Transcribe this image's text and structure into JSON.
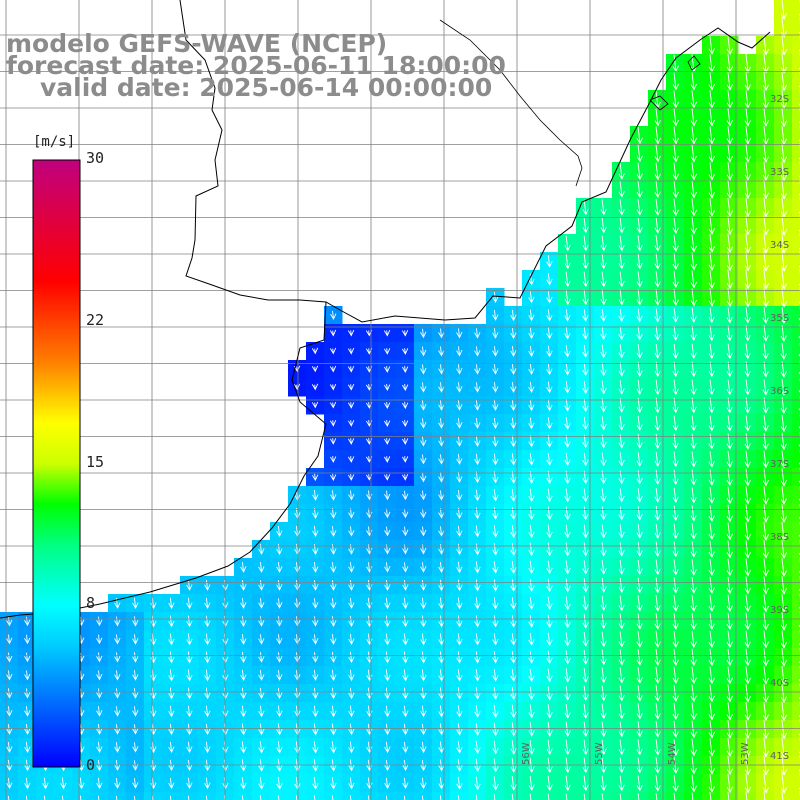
{
  "title": {
    "line1": "modelo GEFS-WAVE (NCEP)",
    "line2": "forecast date: 2025-06-11 18:00:00",
    "line3": "valid date: 2025-06-14 00:00:00"
  },
  "colorbar": {
    "units": "[m/s]",
    "ticks": [
      {
        "value": 30,
        "label": "30"
      },
      {
        "value": 22,
        "label": "22"
      },
      {
        "value": 15,
        "label": "15"
      },
      {
        "value": 8,
        "label": "8"
      },
      {
        "value": 0,
        "label": "0"
      }
    ],
    "range": [
      0,
      30
    ],
    "stops": [
      {
        "value": 0,
        "color": "#0000ff"
      },
      {
        "value": 3,
        "color": "#0066ff"
      },
      {
        "value": 6,
        "color": "#00ccff"
      },
      {
        "value": 8,
        "color": "#00ffff"
      },
      {
        "value": 11,
        "color": "#00ff80"
      },
      {
        "value": 13,
        "color": "#00ff00"
      },
      {
        "value": 15,
        "color": "#ccff00"
      },
      {
        "value": 17,
        "color": "#ffff00"
      },
      {
        "value": 20,
        "color": "#ff8000"
      },
      {
        "value": 24,
        "color": "#ff0000"
      },
      {
        "value": 30,
        "color": "#c0007f"
      }
    ]
  },
  "lat_labels": [
    "32S",
    "33S",
    "34S",
    "35S",
    "36S",
    "37S",
    "38S",
    "39S",
    "40S",
    "41S"
  ],
  "lon_labels": [
    "56W",
    "55W",
    "54W",
    "53W"
  ],
  "field": {
    "variable": "wind speed",
    "direction": "north-northeast to south-southwest",
    "coast_color": "#000000",
    "grid_color": "#808080",
    "arrow_color": "#ffffff"
  }
}
